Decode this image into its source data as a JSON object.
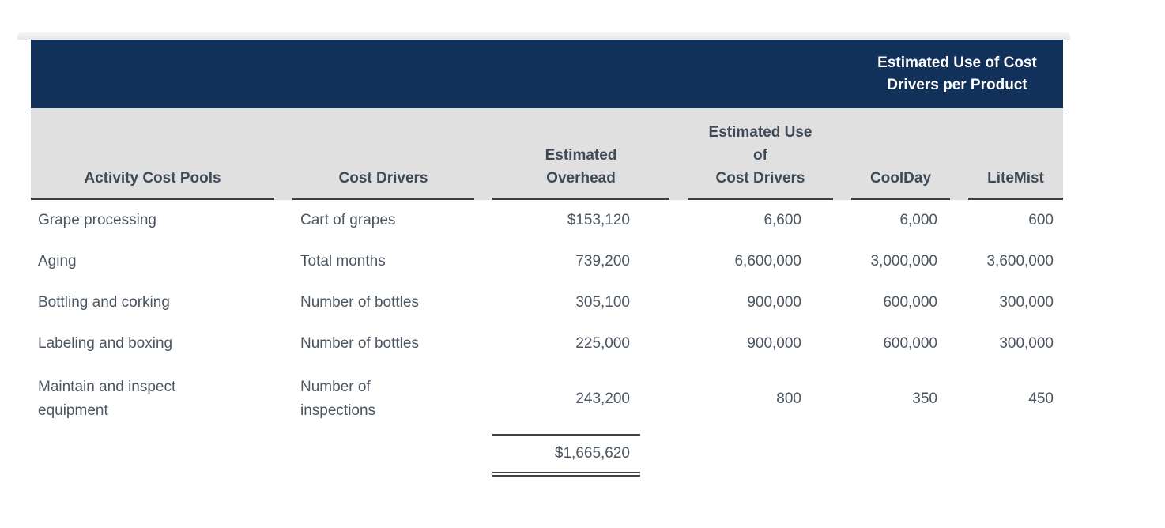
{
  "banner": {
    "title_lines": [
      "Estimated Use of Cost",
      "Drivers per Product"
    ]
  },
  "columns": [
    {
      "id": "activity_cost_pools",
      "label_lines": [
        "Activity Cost Pools"
      ]
    },
    {
      "id": "cost_drivers",
      "label_lines": [
        "Cost Drivers"
      ]
    },
    {
      "id": "estimated_overhead",
      "label_lines": [
        "Estimated",
        "Overhead"
      ]
    },
    {
      "id": "estimated_use",
      "label_lines": [
        "Estimated Use",
        "of",
        "Cost Drivers"
      ]
    },
    {
      "id": "coolday",
      "label_lines": [
        "CoolDay"
      ]
    },
    {
      "id": "litemist",
      "label_lines": [
        "LiteMist"
      ]
    }
  ],
  "rows": [
    {
      "activity": "Grape processing",
      "driver": "Cart of grapes",
      "overhead": "$153,120",
      "use": "6,600",
      "coolday": "6,000",
      "litemist": "600"
    },
    {
      "activity": "Aging",
      "driver": "Total months",
      "overhead": "739,200",
      "use": "6,600,000",
      "coolday": "3,000,000",
      "litemist": "3,600,000"
    },
    {
      "activity": "Bottling and corking",
      "driver": "Number of bottles",
      "overhead": "305,100",
      "use": "900,000",
      "coolday": "600,000",
      "litemist": "300,000"
    },
    {
      "activity": "Labeling and boxing",
      "driver": "Number of bottles",
      "overhead": "225,000",
      "use": "900,000",
      "coolday": "600,000",
      "litemist": "300,000"
    },
    {
      "activity": "Maintain and inspect equipment",
      "driver": "Number of inspections",
      "overhead": "243,200",
      "use": "800",
      "coolday": "350",
      "litemist": "450"
    }
  ],
  "total": {
    "overhead": "$1,665,620"
  },
  "colors": {
    "banner_bg": "#12315A",
    "banner_text": "#FFFFFF",
    "header_bg": "#E0E0E0",
    "header_text": "#3E4A57",
    "rule": "#3E4043",
    "data_text": "#4C5661"
  }
}
